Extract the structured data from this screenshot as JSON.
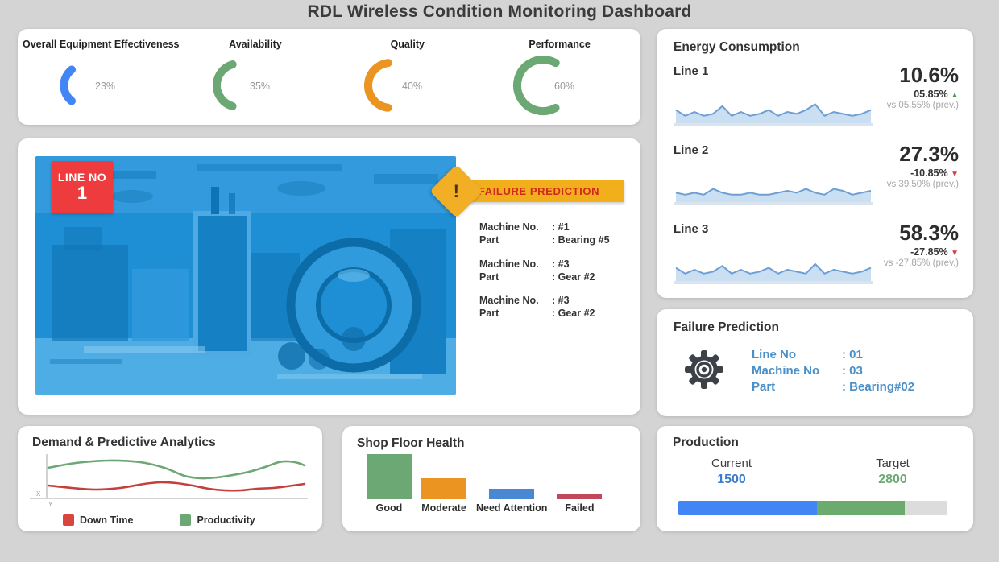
{
  "title": "RDL Wireless Condition Monitoring Dashboard",
  "colors": {
    "background": "#d4d4d4",
    "blue": "#4285F4",
    "green": "#6BA874",
    "orange": "#EC9421",
    "red": "#D9453E",
    "badge_red": "#EE3B3E",
    "banner_yellow": "#F2AF1C",
    "banner_text_red": "#D3281E",
    "label_blue": "#4A90C8",
    "spark_line": "#6D9FD4",
    "spark_fill": "#CBDFF2",
    "spark_base": "#D9E4EF",
    "gray_text": "#9A9A9A"
  },
  "kpi": {
    "items": [
      {
        "label": "Overall Equipment Effectiveness",
        "value_pct": 23,
        "display": "23%",
        "color": "#4285F4"
      },
      {
        "label": "Availability",
        "value_pct": 35,
        "display": "35%",
        "color": "#6BA874"
      },
      {
        "label": "Quality",
        "value_pct": 40,
        "display": "40%",
        "color": "#EC9421"
      },
      {
        "label": "Performance",
        "value_pct": 60,
        "display": "60%",
        "color": "#6BA874"
      }
    ]
  },
  "line_monitor": {
    "badge_top": "LINE NO",
    "badge_number": "1",
    "alert_mark": "!",
    "banner": "FAILURE PREDICTION",
    "entries": [
      {
        "machine_label": "Machine No.",
        "machine_value": ": #1",
        "part_label": "Part",
        "part_value": ": Bearing #5"
      },
      {
        "machine_label": "Machine No.",
        "machine_value": ": #3",
        "part_label": "Part",
        "part_value": ": Gear #2"
      },
      {
        "machine_label": "Machine No.",
        "machine_value": ": #3",
        "part_label": "Part",
        "part_value": ": Gear #2"
      }
    ]
  },
  "energy": {
    "title": "Energy Consumption",
    "lines": [
      {
        "label": "Line 1",
        "value": "10.6%",
        "change": "05.85%",
        "direction": "up",
        "prev": "vs 05.55% (prev.)",
        "spark": [
          6,
          3,
          5,
          3,
          4,
          8,
          3,
          5,
          3,
          4,
          6,
          3,
          5,
          4,
          6,
          9,
          3,
          5,
          4,
          3,
          4,
          6
        ]
      },
      {
        "label": "Line 2",
        "value": "27.3%",
        "change": "-10.85%",
        "direction": "down",
        "prev": "vs 39.50% (prev.)",
        "spark": [
          4,
          3,
          4,
          3,
          6,
          4,
          3,
          3,
          4,
          3,
          3,
          4,
          5,
          4,
          6,
          4,
          3,
          6,
          5,
          3,
          4,
          5
        ]
      },
      {
        "label": "Line 3",
        "value": "58.3%",
        "change": "-27.85%",
        "direction": "down",
        "prev": "vs -27.85% (prev.)",
        "spark": [
          6,
          3,
          5,
          3,
          4,
          7,
          3,
          5,
          3,
          4,
          6,
          3,
          5,
          4,
          3,
          8,
          3,
          5,
          4,
          3,
          4,
          6
        ]
      }
    ]
  },
  "failure_prediction": {
    "title": "Failure Prediction",
    "rows": [
      {
        "label": "Line No",
        "value": ": 01"
      },
      {
        "label": "Machine No",
        "value": ": 03"
      },
      {
        "label": "Part",
        "value": ": Bearing#02"
      }
    ]
  },
  "demand": {
    "title": "Demand & Predictive Analytics",
    "x_label": "X",
    "y_label": "Y",
    "legend": [
      {
        "label": "Down Time",
        "color": "#D9453E"
      },
      {
        "label": "Productivity",
        "color": "#6BA874"
      }
    ],
    "chart_data": {
      "type": "line",
      "series": [
        {
          "name": "Productivity",
          "color": "#6BA874",
          "points": [
            [
              26,
              20
            ],
            [
              60,
              14
            ],
            [
              100,
              11
            ],
            [
              140,
              13
            ],
            [
              170,
              20
            ],
            [
              195,
              30
            ],
            [
              215,
              33
            ],
            [
              235,
              32
            ],
            [
              255,
              29
            ],
            [
              275,
              25
            ],
            [
              295,
              19
            ],
            [
              312,
              13
            ],
            [
              324,
              12
            ],
            [
              336,
              14
            ],
            [
              344,
              17
            ]
          ]
        },
        {
          "name": "Down Time",
          "color": "#C4403C",
          "points": [
            [
              26,
              42
            ],
            [
              55,
              45
            ],
            [
              85,
              47
            ],
            [
              115,
              45
            ],
            [
              145,
              40
            ],
            [
              165,
              38
            ],
            [
              185,
              39
            ],
            [
              205,
              42
            ],
            [
              225,
              46
            ],
            [
              245,
              48
            ],
            [
              265,
              48
            ],
            [
              285,
              46
            ],
            [
              305,
              45
            ],
            [
              322,
              43
            ],
            [
              344,
              40
            ]
          ]
        }
      ]
    }
  },
  "shop_floor": {
    "title": "Shop Floor Health",
    "chart_data": {
      "type": "bar",
      "categories": [
        "Good",
        "Moderate",
        "Need Attention",
        "Failed"
      ],
      "values": [
        56,
        26,
        13,
        6
      ],
      "colors": [
        "#6BA874",
        "#EC9421",
        "#4A88D4",
        "#C0485A"
      ]
    }
  },
  "production": {
    "title": "Production",
    "current_label": "Current",
    "current_value": "1500",
    "target_label": "Target",
    "target_value": "2800",
    "segments": [
      {
        "color": "#4285F4",
        "pct": 51.6
      },
      {
        "color": "#6BAB6E",
        "pct": 32.6
      },
      {
        "color": "#DCDCDC",
        "pct": 15.8
      }
    ]
  }
}
